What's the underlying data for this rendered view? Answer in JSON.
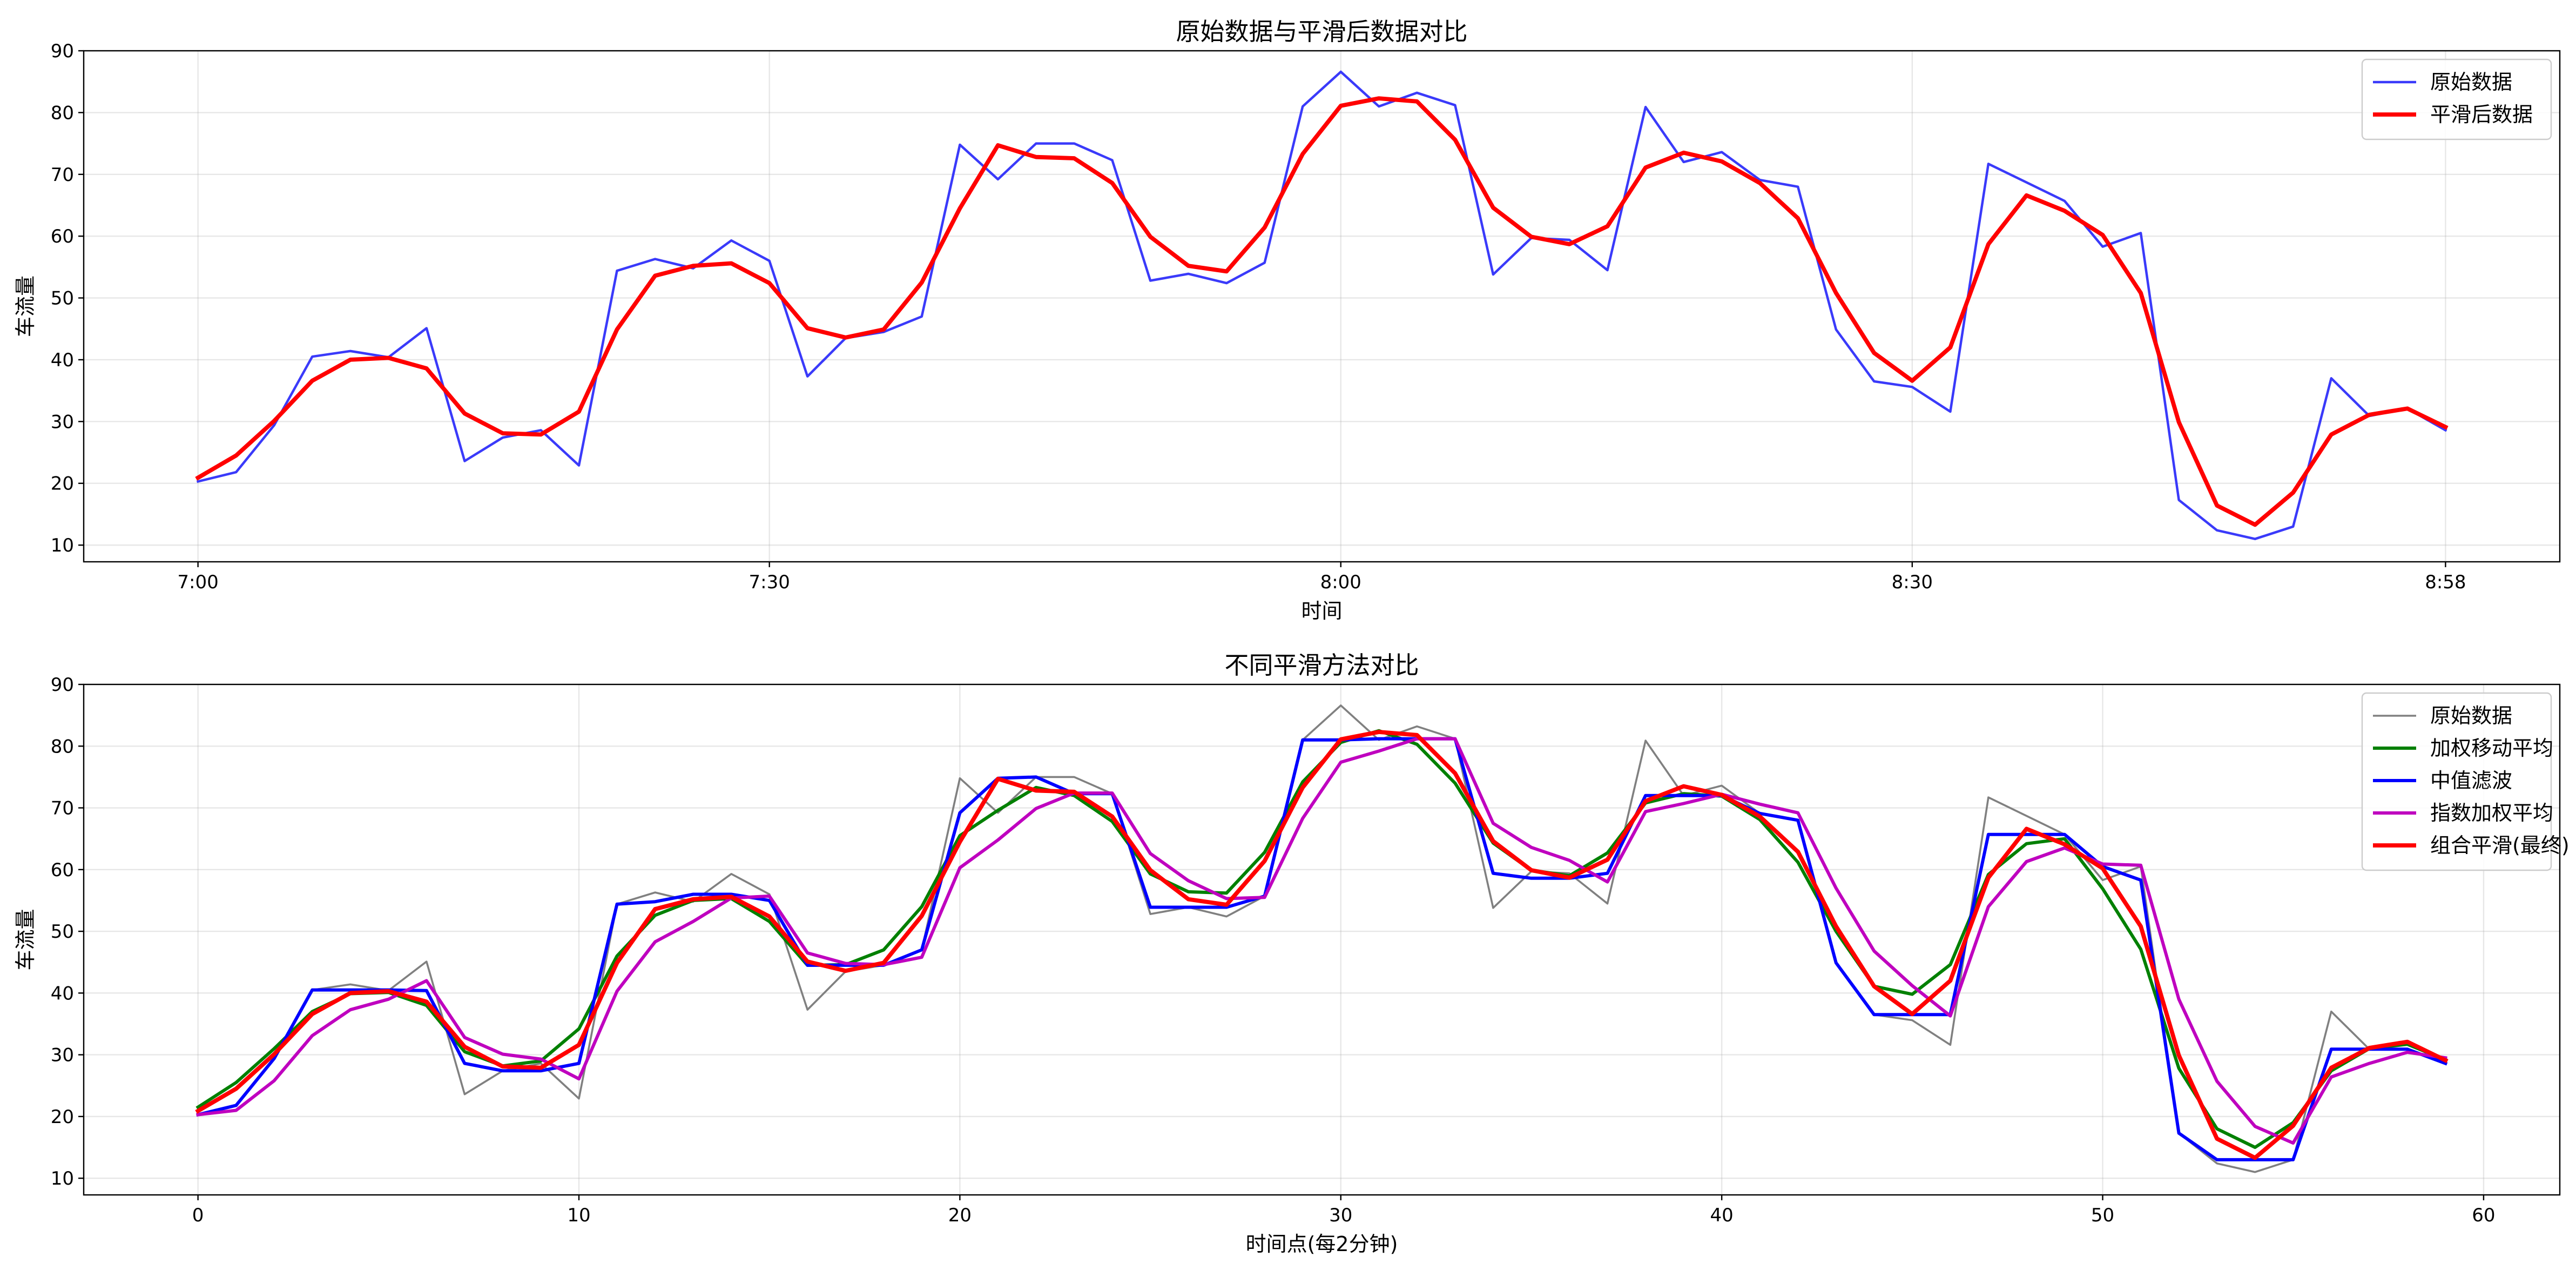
{
  "chart_data": [
    {
      "type": "line",
      "title": "原始数据与平滑后数据对比",
      "xlabel": "时间",
      "ylabel": "车流量",
      "x": [
        0,
        1,
        2,
        3,
        4,
        5,
        6,
        7,
        8,
        9,
        10,
        11,
        12,
        13,
        14,
        15,
        16,
        17,
        18,
        19,
        20,
        21,
        22,
        23,
        24,
        25,
        26,
        27,
        28,
        29,
        30,
        31,
        32,
        33,
        34,
        35,
        36,
        37,
        38,
        39,
        40,
        41,
        42,
        43,
        44,
        45,
        46,
        47,
        48,
        49,
        50,
        51,
        52,
        53,
        54,
        55,
        56,
        57,
        58,
        59
      ],
      "xlim": [
        -3.0,
        62.0
      ],
      "ylim": [
        7.3,
        90.0
      ],
      "xtick_positions": [
        0,
        15,
        30,
        45,
        59
      ],
      "xtick_labels": [
        "7:00",
        "7:30",
        "8:00",
        "8:30",
        "8:58"
      ],
      "yticks": [
        10,
        20,
        30,
        40,
        50,
        60,
        70,
        80,
        90
      ],
      "grid": true,
      "legend": "top-right",
      "series": [
        {
          "name": "原始数据",
          "color": "#3a3afa",
          "width": 1.5,
          "values": [
            20.3,
            21.8,
            29.4,
            40.5,
            41.4,
            40.4,
            45.1,
            23.6,
            27.4,
            28.6,
            22.9,
            54.4,
            56.3,
            54.8,
            59.3,
            56.0,
            37.3,
            43.5,
            44.5,
            47.0,
            74.8,
            69.2,
            75.0,
            75.0,
            72.3,
            52.8,
            53.9,
            52.4,
            55.7,
            81.0,
            86.6,
            81.0,
            83.2,
            81.2,
            53.8,
            59.7,
            59.4,
            54.5,
            80.9,
            72.0,
            73.6,
            69.1,
            68.0,
            44.9,
            36.5,
            35.6,
            31.6,
            71.7,
            68.7,
            65.7,
            58.3,
            60.5,
            17.3,
            12.4,
            11.0,
            13.0,
            37.0,
            30.9,
            32.1,
            28.6
          ]
        },
        {
          "name": "平滑后数据",
          "color": "#ff0000",
          "width": 2.6,
          "values": [
            20.9,
            24.5,
            30.1,
            36.6,
            40.0,
            40.3,
            38.6,
            31.3,
            28.1,
            27.9,
            31.6,
            44.9,
            53.6,
            55.2,
            55.6,
            52.4,
            45.1,
            43.6,
            44.9,
            52.5,
            64.5,
            74.7,
            72.8,
            72.6,
            68.6,
            59.9,
            55.2,
            54.3,
            61.4,
            73.3,
            81.1,
            82.3,
            81.8,
            75.6,
            64.6,
            59.9,
            58.7,
            61.6,
            71.1,
            73.5,
            72.1,
            68.6,
            62.9,
            50.8,
            41.1,
            36.6,
            42.0,
            58.7,
            66.6,
            64.1,
            60.2,
            50.8,
            29.9,
            16.4,
            13.3,
            18.5,
            27.9,
            31.1,
            32.1,
            29.1
          ]
        }
      ]
    },
    {
      "type": "line",
      "title": "不同平滑方法对比",
      "xlabel": "时间点(每2分钟)",
      "ylabel": "车流量",
      "x": [
        0,
        1,
        2,
        3,
        4,
        5,
        6,
        7,
        8,
        9,
        10,
        11,
        12,
        13,
        14,
        15,
        16,
        17,
        18,
        19,
        20,
        21,
        22,
        23,
        24,
        25,
        26,
        27,
        28,
        29,
        30,
        31,
        32,
        33,
        34,
        35,
        36,
        37,
        38,
        39,
        40,
        41,
        42,
        43,
        44,
        45,
        46,
        47,
        48,
        49,
        50,
        51,
        52,
        53,
        54,
        55,
        56,
        57,
        58,
        59
      ],
      "xlim": [
        -3.0,
        62.0
      ],
      "ylim": [
        7.3,
        90.0
      ],
      "xticks": [
        0,
        10,
        20,
        30,
        40,
        50,
        60
      ],
      "yticks": [
        10,
        20,
        30,
        40,
        50,
        60,
        70,
        80,
        90
      ],
      "grid": true,
      "legend": "top-right",
      "series": [
        {
          "name": "原始数据",
          "color": "#808080",
          "width": 1.2,
          "values": [
            20.3,
            21.8,
            29.4,
            40.5,
            41.4,
            40.4,
            45.1,
            23.6,
            27.4,
            28.6,
            22.9,
            54.4,
            56.3,
            54.8,
            59.3,
            56.0,
            37.3,
            43.5,
            44.5,
            47.0,
            74.8,
            69.2,
            75.0,
            75.0,
            72.3,
            52.8,
            53.9,
            52.4,
            55.7,
            81.0,
            86.6,
            81.0,
            83.2,
            81.2,
            53.8,
            59.7,
            59.4,
            54.5,
            80.9,
            72.0,
            73.6,
            69.1,
            68.0,
            44.9,
            36.5,
            35.6,
            31.6,
            71.7,
            68.7,
            65.7,
            58.3,
            60.5,
            17.3,
            12.4,
            11.0,
            13.0,
            37.0,
            30.9,
            32.1,
            28.6
          ]
        },
        {
          "name": "加权移动平均",
          "color": "#008000",
          "width": 2.0,
          "values": [
            21.5,
            25.5,
            31.0,
            37.0,
            39.9,
            40.1,
            38.0,
            30.5,
            28.2,
            29.0,
            34.2,
            46.0,
            52.6,
            55.0,
            55.3,
            51.6,
            44.5,
            44.6,
            47.0,
            54.0,
            65.5,
            69.6,
            73.3,
            72.0,
            67.8,
            59.3,
            56.4,
            56.2,
            62.8,
            74.2,
            80.6,
            82.5,
            80.3,
            74.0,
            64.3,
            59.9,
            59.0,
            62.7,
            70.8,
            72.3,
            71.9,
            68.1,
            61.2,
            50.0,
            41.1,
            39.8,
            44.6,
            59.2,
            64.2,
            65.0,
            56.9,
            47.1,
            27.8,
            18.0,
            15.0,
            19.0,
            27.4,
            31.0,
            31.7,
            29.2
          ]
        },
        {
          "name": "中值滤波",
          "color": "#0000ff",
          "width": 2.0,
          "values": [
            20.3,
            21.8,
            29.4,
            40.5,
            40.5,
            40.5,
            40.4,
            28.6,
            27.4,
            27.4,
            28.6,
            54.4,
            54.8,
            56.0,
            56.0,
            55.0,
            44.5,
            44.5,
            44.5,
            47.0,
            69.2,
            74.8,
            75.0,
            72.3,
            72.3,
            53.9,
            53.9,
            53.9,
            55.7,
            81.0,
            81.0,
            81.2,
            81.2,
            81.2,
            59.4,
            58.6,
            58.6,
            59.4,
            72.0,
            72.0,
            72.0,
            69.1,
            68.0,
            44.9,
            36.5,
            36.5,
            36.5,
            65.7,
            65.7,
            65.7,
            60.5,
            58.3,
            17.3,
            13.0,
            13.0,
            13.0,
            30.9,
            30.9,
            30.9,
            28.6
          ]
        },
        {
          "name": "指数加权平均",
          "color": "#bf00bf",
          "width": 2.0,
          "values": [
            20.3,
            21.0,
            25.8,
            33.1,
            37.3,
            39.0,
            42.0,
            32.8,
            30.1,
            29.3,
            26.1,
            40.3,
            48.3,
            51.6,
            55.4,
            55.7,
            46.5,
            44.8,
            44.6,
            45.8,
            60.3,
            64.8,
            69.9,
            72.4,
            72.4,
            62.6,
            58.2,
            55.3,
            55.5,
            68.3,
            77.4,
            79.2,
            81.2,
            81.2,
            67.5,
            63.6,
            61.5,
            58.0,
            69.4,
            70.7,
            72.2,
            70.6,
            69.2,
            57.0,
            46.8,
            41.2,
            36.3,
            54.0,
            61.3,
            63.5,
            60.9,
            60.7,
            39.0,
            25.7,
            18.4,
            15.7,
            26.4,
            28.6,
            30.4,
            29.5
          ]
        },
        {
          "name": "组合平滑(最终)",
          "color": "#ff0000",
          "width": 2.6,
          "values": [
            20.9,
            24.5,
            30.1,
            36.6,
            40.0,
            40.3,
            38.6,
            31.3,
            28.1,
            27.9,
            31.6,
            44.9,
            53.6,
            55.2,
            55.6,
            52.4,
            45.1,
            43.6,
            44.9,
            52.5,
            64.5,
            74.7,
            72.8,
            72.6,
            68.6,
            59.9,
            55.2,
            54.3,
            61.4,
            73.3,
            81.1,
            82.3,
            81.8,
            75.6,
            64.6,
            59.9,
            58.7,
            61.6,
            71.1,
            73.5,
            72.1,
            68.6,
            62.9,
            50.8,
            41.1,
            36.6,
            42.0,
            58.7,
            66.6,
            64.1,
            60.2,
            50.8,
            29.9,
            16.4,
            13.3,
            18.5,
            27.9,
            31.1,
            32.1,
            29.1
          ]
        }
      ]
    }
  ]
}
